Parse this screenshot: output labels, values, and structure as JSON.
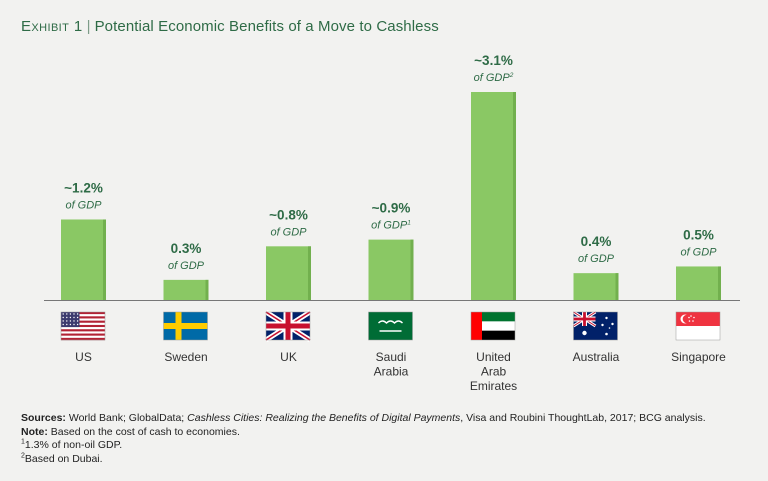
{
  "title": {
    "exhibit": "Exhibit 1",
    "separator": "|",
    "text": "Potential Economic Benefits of a Move to Cashless"
  },
  "colors": {
    "bar": "#8ac864",
    "bar_shadow": "#72b04e",
    "label_green": "#2e6b46",
    "axis": "#777777",
    "background": "#f2f2f0"
  },
  "chart_data": {
    "type": "bar",
    "categories": [
      "US",
      "Sweden",
      "UK",
      "Saudi Arabia",
      "United Arab Emirates",
      "Australia",
      "Singapore"
    ],
    "category_lines": [
      [
        "US"
      ],
      [
        "Sweden"
      ],
      [
        "UK"
      ],
      [
        "Saudi",
        "Arabia"
      ],
      [
        "United",
        "Arab",
        "Emirates"
      ],
      [
        "Australia"
      ],
      [
        "Singapore"
      ]
    ],
    "values": [
      1.2,
      0.3,
      0.8,
      0.9,
      3.1,
      0.4,
      0.5
    ],
    "value_labels": [
      "~1.2%",
      "0.3%",
      "~0.8%",
      "~0.9%",
      "~3.1%",
      "0.4%",
      "0.5%"
    ],
    "sub_labels": [
      "of GDP",
      "of GDP",
      "of GDP",
      "of GDP",
      "of GDP",
      "of GDP",
      "of GDP"
    ],
    "footnote_marks": [
      "",
      "",
      "",
      "1",
      "2",
      "",
      ""
    ],
    "flags": [
      "us-flag",
      "sweden-flag",
      "uk-flag",
      "saudi-arabia-flag",
      "uae-flag",
      "australia-flag",
      "singapore-flag"
    ],
    "ylim": [
      0,
      3.1
    ],
    "xlabel": "",
    "ylabel": "",
    "grid": false,
    "legend": "none"
  },
  "footer": {
    "sources_label": "Sources:",
    "sources_text_1": "World Bank; GlobalData;",
    "sources_italic": "Cashless Cities: Realizing the Benefits of Digital Payments",
    "sources_text_2": ", Visa and Roubini ThoughtLab, 2017; BCG analysis.",
    "note_label": "Note:",
    "note_text": "Based on the cost of cash to economies.",
    "fn1_mark": "1",
    "fn1_text": "1.3% of non-oil GDP.",
    "fn2_mark": "2",
    "fn2_text": "Based on Dubai."
  }
}
